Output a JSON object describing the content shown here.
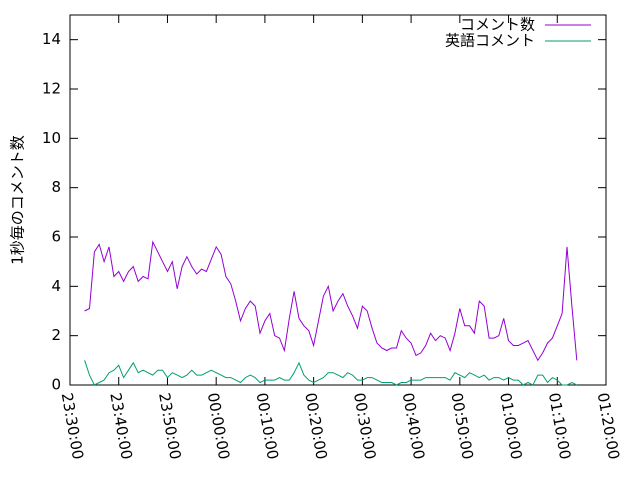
{
  "chart_data": {
    "type": "line",
    "ylabel": "1秒毎のコメント数",
    "legend": "upper right",
    "x": [
      "23:33:00",
      "23:34:00",
      "23:35:00",
      "23:36:00",
      "23:37:00",
      "23:38:00",
      "23:39:00",
      "23:40:00",
      "23:41:00",
      "23:42:00",
      "23:43:00",
      "23:44:00",
      "23:45:00",
      "23:46:00",
      "23:47:00",
      "23:48:00",
      "23:49:00",
      "23:50:00",
      "23:51:00",
      "23:52:00",
      "23:53:00",
      "23:54:00",
      "23:55:00",
      "23:56:00",
      "23:57:00",
      "23:58:00",
      "23:59:00",
      "00:00:00",
      "00:01:00",
      "00:02:00",
      "00:03:00",
      "00:04:00",
      "00:05:00",
      "00:06:00",
      "00:07:00",
      "00:08:00",
      "00:09:00",
      "00:10:00",
      "00:11:00",
      "00:12:00",
      "00:13:00",
      "00:14:00",
      "00:15:00",
      "00:16:00",
      "00:17:00",
      "00:18:00",
      "00:19:00",
      "00:20:00",
      "00:21:00",
      "00:22:00",
      "00:23:00",
      "00:24:00",
      "00:25:00",
      "00:26:00",
      "00:27:00",
      "00:28:00",
      "00:29:00",
      "00:30:00",
      "00:31:00",
      "00:32:00",
      "00:33:00",
      "00:34:00",
      "00:35:00",
      "00:36:00",
      "00:37:00",
      "00:38:00",
      "00:39:00",
      "00:40:00",
      "00:41:00",
      "00:42:00",
      "00:43:00",
      "00:44:00",
      "00:45:00",
      "00:46:00",
      "00:47:00",
      "00:48:00",
      "00:49:00",
      "00:50:00",
      "00:51:00",
      "00:52:00",
      "00:53:00",
      "00:54:00",
      "00:55:00",
      "00:56:00",
      "00:57:00",
      "00:58:00",
      "00:59:00",
      "01:00:00",
      "01:01:00",
      "01:02:00",
      "01:03:00",
      "01:04:00",
      "01:05:00",
      "01:06:00",
      "01:07:00",
      "01:08:00",
      "01:09:00",
      "01:10:00",
      "01:11:00",
      "01:12:00",
      "01:13:00",
      "01:14:00"
    ],
    "series": [
      {
        "name": "コメント数",
        "color": "#9400d3",
        "values": [
          3.0,
          3.1,
          5.4,
          5.7,
          5.0,
          5.6,
          4.4,
          4.6,
          4.2,
          4.6,
          4.8,
          4.2,
          4.4,
          4.3,
          5.8,
          5.4,
          5.0,
          4.6,
          5.0,
          3.9,
          4.8,
          5.2,
          4.8,
          4.5,
          4.7,
          4.6,
          5.1,
          5.6,
          5.3,
          4.4,
          4.1,
          3.4,
          2.6,
          3.1,
          3.4,
          3.2,
          2.1,
          2.6,
          2.9,
          2.0,
          1.9,
          1.4,
          2.7,
          3.8,
          2.7,
          2.4,
          2.2,
          1.6,
          2.6,
          3.6,
          4.0,
          3.0,
          3.4,
          3.7,
          3.2,
          2.8,
          2.3,
          3.2,
          3.0,
          2.3,
          1.7,
          1.5,
          1.4,
          1.5,
          1.5,
          2.2,
          1.9,
          1.7,
          1.2,
          1.3,
          1.6,
          2.1,
          1.8,
          2.0,
          1.9,
          1.4,
          2.1,
          3.1,
          2.4,
          2.4,
          2.1,
          3.4,
          3.2,
          1.9,
          1.9,
          2.0,
          2.7,
          1.8,
          1.6,
          1.6,
          1.7,
          1.8,
          1.4,
          1.0,
          1.3,
          1.7,
          1.9,
          2.4,
          2.9,
          5.6,
          3.2,
          1.0
        ]
      },
      {
        "name": "英語コメント",
        "color": "#009e73",
        "values": [
          1.0,
          0.4,
          0.0,
          0.1,
          0.2,
          0.5,
          0.6,
          0.8,
          0.3,
          0.6,
          0.9,
          0.5,
          0.6,
          0.5,
          0.4,
          0.6,
          0.6,
          0.3,
          0.5,
          0.4,
          0.3,
          0.4,
          0.6,
          0.4,
          0.4,
          0.5,
          0.6,
          0.5,
          0.4,
          0.3,
          0.3,
          0.2,
          0.1,
          0.3,
          0.4,
          0.3,
          0.1,
          0.2,
          0.2,
          0.2,
          0.3,
          0.2,
          0.2,
          0.5,
          0.9,
          0.4,
          0.2,
          0.1,
          0.2,
          0.3,
          0.5,
          0.5,
          0.4,
          0.3,
          0.5,
          0.4,
          0.2,
          0.2,
          0.3,
          0.3,
          0.2,
          0.1,
          0.1,
          0.1,
          0.0,
          0.1,
          0.1,
          0.2,
          0.2,
          0.2,
          0.3,
          0.3,
          0.3,
          0.3,
          0.3,
          0.2,
          0.5,
          0.4,
          0.3,
          0.5,
          0.4,
          0.3,
          0.4,
          0.2,
          0.3,
          0.3,
          0.2,
          0.3,
          0.2,
          0.2,
          0.0,
          0.1,
          0.0,
          0.4,
          0.4,
          0.1,
          0.3,
          0.2,
          0.0,
          0.0,
          0.1,
          0.0
        ]
      }
    ],
    "xlim": [
      "23:30:00",
      "01:20:00"
    ],
    "xticks": [
      "23:30:00",
      "23:40:00",
      "23:50:00",
      "00:00:00",
      "00:10:00",
      "00:20:00",
      "00:30:00",
      "00:40:00",
      "00:50:00",
      "01:00:00",
      "01:10:00",
      "01:20:00"
    ],
    "ylim": [
      0,
      15
    ],
    "yticks": [
      0,
      2,
      4,
      6,
      8,
      10,
      12,
      14
    ]
  }
}
